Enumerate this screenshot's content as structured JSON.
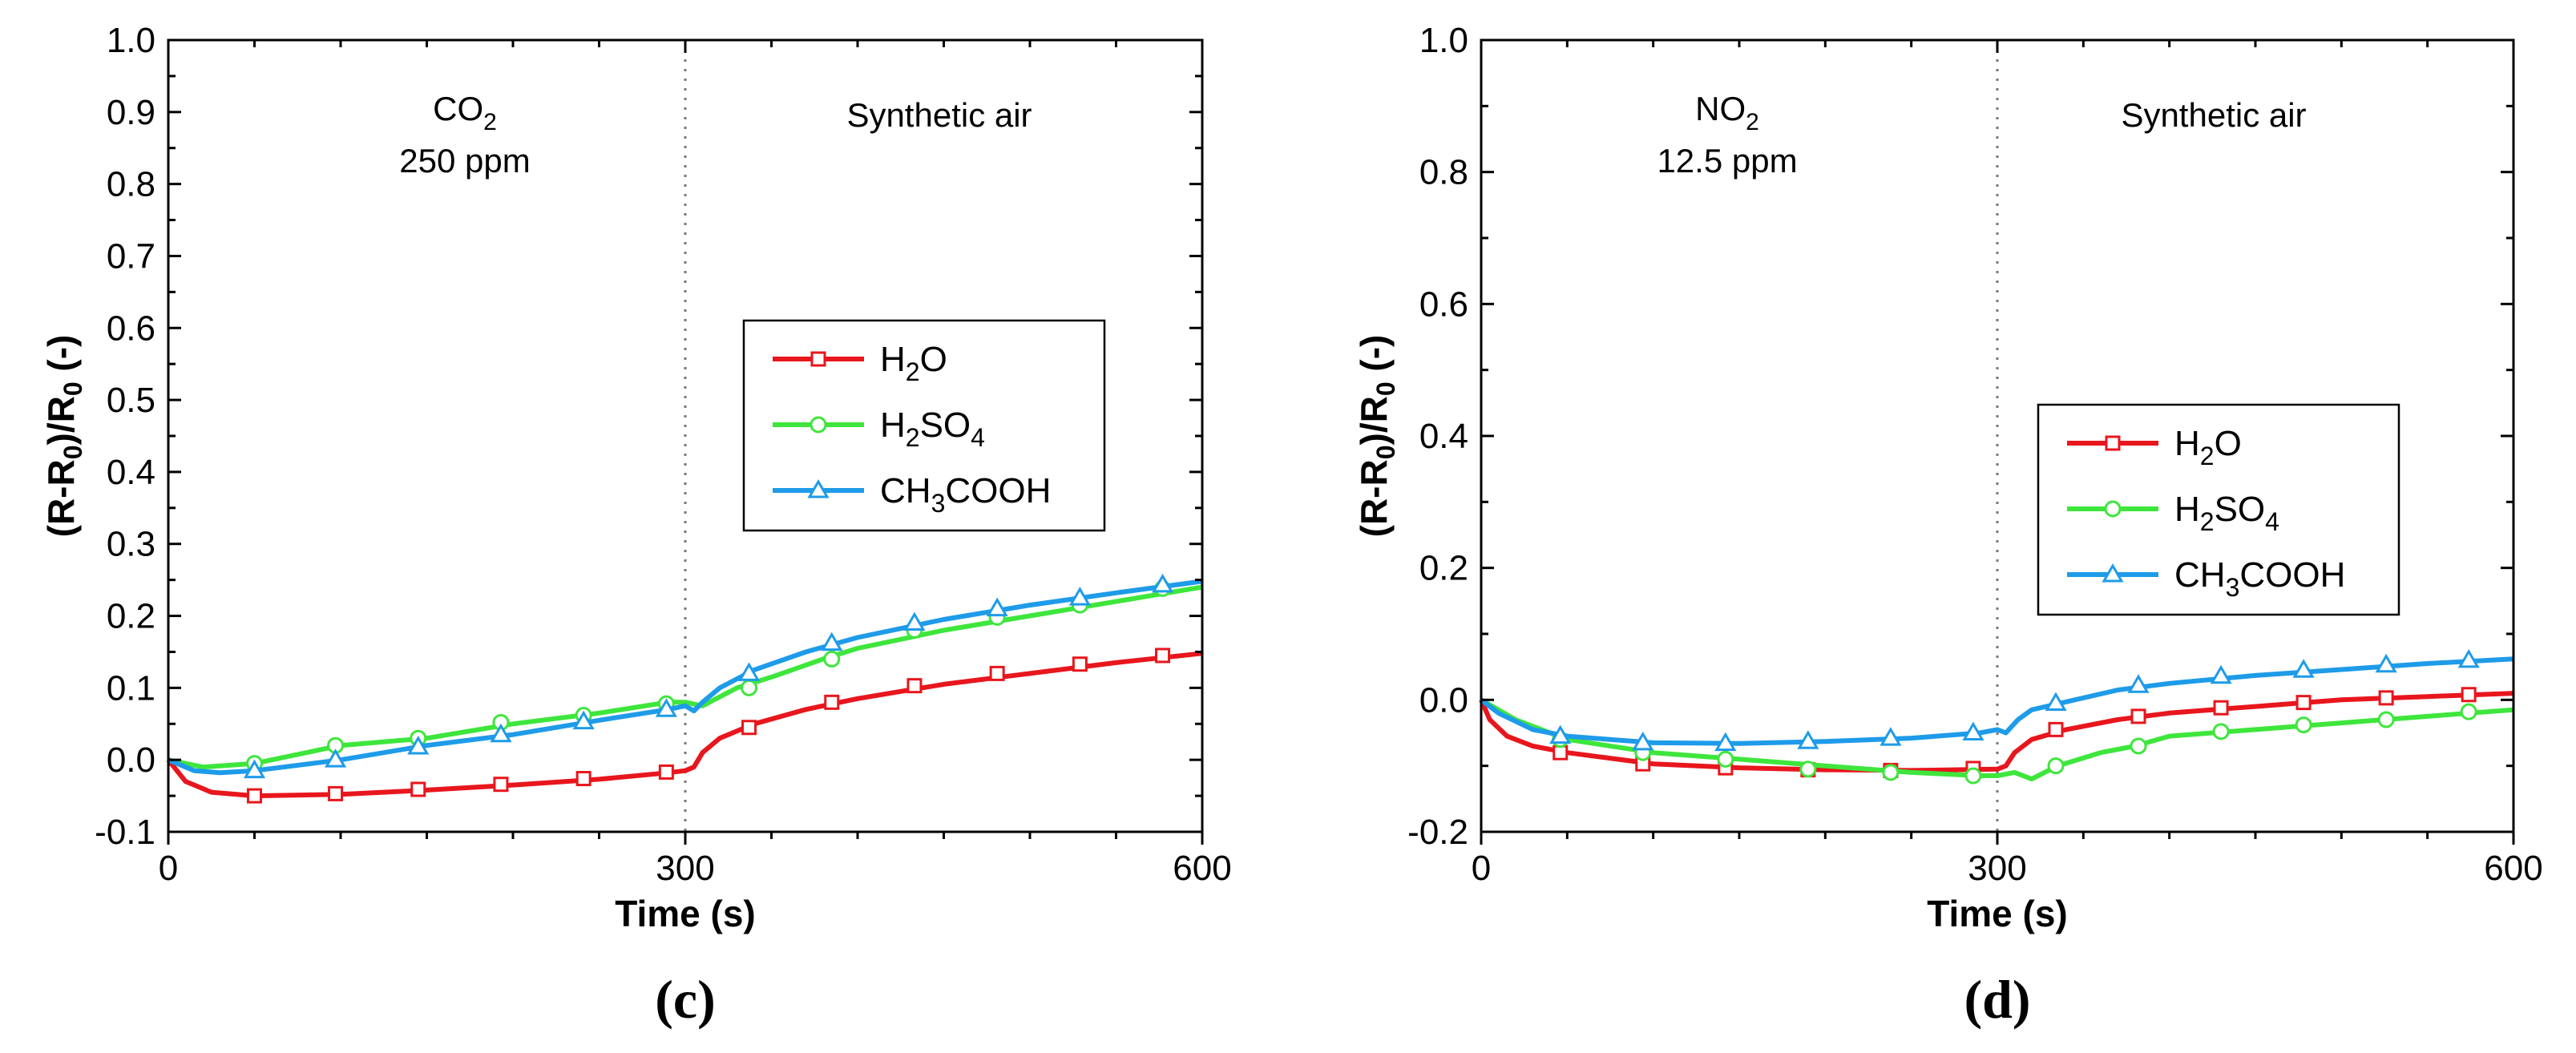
{
  "chart_data": [
    {
      "type": "line",
      "panel_label": "(c)",
      "xlabel": "Time (s)",
      "ylabel": "(R-R0)/R0 (-)",
      "xlim": [
        0,
        600
      ],
      "ylim": [
        -0.1,
        1.0
      ],
      "xticks": [
        0,
        300,
        600
      ],
      "yticks": [
        -0.1,
        0.0,
        0.1,
        0.2,
        0.3,
        0.4,
        0.5,
        0.6,
        0.7,
        0.8,
        0.9,
        1.0
      ],
      "ytick_labels": [
        "-0.1",
        "0.0",
        "0.1",
        "0.2",
        "0.3",
        "0.4",
        "0.5",
        "0.6",
        "0.7",
        "0.8",
        "0.9",
        "1.0"
      ],
      "divider_x": 300,
      "gas_formula": "CO",
      "gas_formula_sub": "2",
      "gas_concentration": "250 ppm",
      "phase_label": "Synthetic air",
      "legend_position": "center-right",
      "series": [
        {
          "name": "H2O",
          "color": "#e8161d",
          "marker": "square",
          "x": [
            0,
            10,
            25,
            50,
            100,
            150,
            200,
            250,
            290,
            300,
            305,
            310,
            320,
            340,
            370,
            400,
            450,
            500,
            550,
            600
          ],
          "values": [
            0.0,
            -0.03,
            -0.045,
            -0.05,
            -0.048,
            -0.042,
            -0.035,
            -0.027,
            -0.018,
            -0.015,
            -0.01,
            0.01,
            0.03,
            0.05,
            0.07,
            0.085,
            0.105,
            0.12,
            0.135,
            0.148
          ],
          "marker_x": [
            50,
            97,
            145,
            193,
            241,
            289,
            337,
            385,
            433,
            481,
            529,
            577
          ],
          "marker_y": [
            -0.05,
            -0.047,
            -0.041,
            -0.034,
            -0.026,
            -0.017,
            0.045,
            0.08,
            0.103,
            0.12,
            0.133,
            0.145
          ]
        },
        {
          "name": "H2SO4",
          "color": "#3ee63c",
          "marker": "circle",
          "x": [
            0,
            20,
            50,
            100,
            150,
            200,
            250,
            290,
            300,
            310,
            330,
            350,
            380,
            400,
            450,
            500,
            550,
            600
          ],
          "values": [
            0.0,
            -0.01,
            -0.005,
            0.02,
            0.03,
            0.05,
            0.065,
            0.08,
            0.08,
            0.075,
            0.1,
            0.115,
            0.14,
            0.155,
            0.18,
            0.2,
            0.22,
            0.24
          ],
          "marker_x": [
            50,
            97,
            145,
            193,
            241,
            289,
            337,
            385,
            433,
            481,
            529,
            577
          ],
          "marker_y": [
            -0.005,
            0.02,
            0.03,
            0.052,
            0.062,
            0.078,
            0.1,
            0.14,
            0.18,
            0.198,
            0.215,
            0.238
          ]
        },
        {
          "name": "CH3COOH",
          "color": "#1e9be9",
          "marker": "triangle",
          "x": [
            0,
            15,
            30,
            50,
            100,
            150,
            200,
            250,
            290,
            300,
            305,
            310,
            320,
            340,
            370,
            400,
            450,
            500,
            550,
            600
          ],
          "values": [
            0.0,
            -0.015,
            -0.018,
            -0.015,
            0.0,
            0.02,
            0.035,
            0.055,
            0.07,
            0.075,
            0.068,
            0.08,
            0.1,
            0.125,
            0.15,
            0.17,
            0.195,
            0.215,
            0.232,
            0.248
          ],
          "marker_x": [
            50,
            97,
            145,
            193,
            241,
            289,
            337,
            385,
            433,
            481,
            529,
            577
          ],
          "marker_y": [
            -0.015,
            0.0,
            0.018,
            0.035,
            0.053,
            0.07,
            0.12,
            0.162,
            0.19,
            0.21,
            0.225,
            0.243
          ]
        }
      ]
    },
    {
      "type": "line",
      "panel_label": "(d)",
      "xlabel": "Time (s)",
      "ylabel": "(R-R0)/R0 (-)",
      "xlim": [
        0,
        600
      ],
      "ylim": [
        -0.2,
        1.0
      ],
      "xticks": [
        0,
        300,
        600
      ],
      "yticks": [
        -0.2,
        0.0,
        0.2,
        0.4,
        0.6,
        0.8,
        1.0
      ],
      "ytick_labels": [
        "-0.2",
        "0.0",
        "0.2",
        "0.4",
        "0.6",
        "0.8",
        "1.0"
      ],
      "divider_x": 300,
      "gas_formula": "NO",
      "gas_formula_sub": "2",
      "gas_concentration": "12.5 ppm",
      "phase_label": "Synthetic air",
      "legend_position": "center-right",
      "series": [
        {
          "name": "H2O",
          "color": "#e8161d",
          "marker": "square",
          "x": [
            0,
            5,
            15,
            30,
            50,
            100,
            150,
            200,
            250,
            300,
            305,
            310,
            320,
            340,
            370,
            400,
            450,
            500,
            550,
            600
          ],
          "values": [
            0.0,
            -0.03,
            -0.055,
            -0.07,
            -0.08,
            -0.097,
            -0.103,
            -0.106,
            -0.107,
            -0.105,
            -0.1,
            -0.08,
            -0.06,
            -0.045,
            -0.03,
            -0.02,
            -0.01,
            0.0,
            0.005,
            0.01
          ],
          "marker_x": [
            46,
            94,
            142,
            190,
            238,
            286,
            334,
            382,
            430,
            478,
            526,
            574
          ],
          "marker_y": [
            -0.08,
            -0.097,
            -0.103,
            -0.106,
            -0.107,
            -0.104,
            -0.045,
            -0.025,
            -0.012,
            -0.004,
            0.003,
            0.008
          ]
        },
        {
          "name": "H2SO4",
          "color": "#3ee63c",
          "marker": "circle",
          "x": [
            0,
            20,
            50,
            100,
            150,
            200,
            250,
            290,
            300,
            310,
            320,
            335,
            360,
            380,
            400,
            450,
            500,
            550,
            600
          ],
          "values": [
            0.0,
            -0.03,
            -0.06,
            -0.08,
            -0.09,
            -0.1,
            -0.11,
            -0.115,
            -0.115,
            -0.11,
            -0.12,
            -0.1,
            -0.08,
            -0.07,
            -0.055,
            -0.045,
            -0.035,
            -0.025,
            -0.015
          ],
          "marker_x": [
            46,
            94,
            142,
            190,
            238,
            286,
            334,
            382,
            430,
            478,
            526,
            574
          ],
          "marker_y": [
            -0.06,
            -0.08,
            -0.09,
            -0.105,
            -0.11,
            -0.115,
            -0.1,
            -0.07,
            -0.048,
            -0.038,
            -0.03,
            -0.018
          ]
        },
        {
          "name": "CH3COOH",
          "color": "#1e9be9",
          "marker": "triangle",
          "x": [
            0,
            10,
            30,
            50,
            100,
            150,
            200,
            250,
            290,
            300,
            305,
            312,
            320,
            340,
            370,
            400,
            450,
            500,
            550,
            600
          ],
          "values": [
            0.0,
            -0.02,
            -0.045,
            -0.055,
            -0.065,
            -0.066,
            -0.063,
            -0.058,
            -0.05,
            -0.045,
            -0.05,
            -0.03,
            -0.015,
            -0.003,
            0.015,
            0.025,
            0.037,
            0.046,
            0.055,
            0.062
          ],
          "marker_x": [
            46,
            94,
            142,
            190,
            238,
            286,
            334,
            382,
            430,
            478,
            526,
            574
          ],
          "marker_y": [
            -0.055,
            -0.065,
            -0.066,
            -0.063,
            -0.058,
            -0.05,
            -0.005,
            0.022,
            0.036,
            0.045,
            0.053,
            0.06
          ]
        }
      ]
    }
  ],
  "legend": [
    {
      "base": "H",
      "sub1": "2",
      "mid": "O",
      "sub2": "",
      "tail": ""
    },
    {
      "base": "H",
      "sub1": "2",
      "mid": "SO",
      "sub2": "4",
      "tail": ""
    },
    {
      "base": "CH",
      "sub1": "3",
      "mid": "COOH",
      "sub2": "",
      "tail": ""
    }
  ],
  "ylabel_parts": {
    "a": "(R-R",
    "sub1": "0",
    "b": ")/R",
    "sub2": "0",
    "c": " (-)"
  }
}
